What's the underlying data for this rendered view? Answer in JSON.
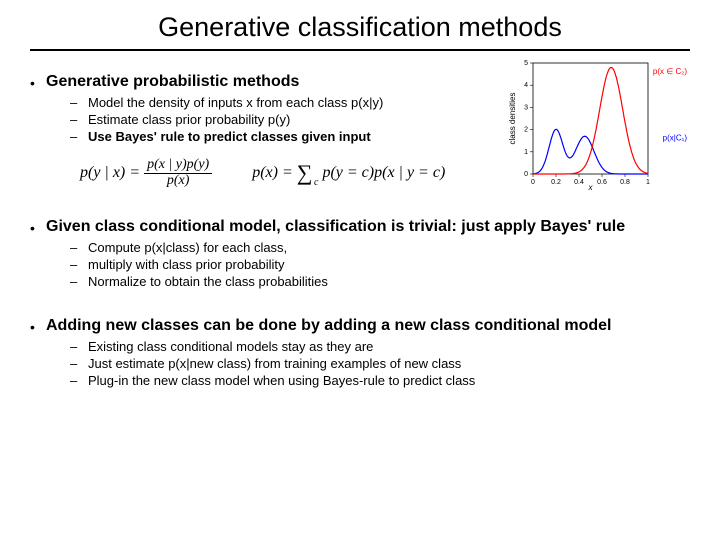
{
  "title": "Generative classification methods",
  "section1": {
    "heading": "Generative probabilistic methods",
    "items": [
      {
        "text": "Model the density of inputs x from each class p(x|y)",
        "bold": false
      },
      {
        "text": "Estimate class prior probability p(y)",
        "bold": false
      },
      {
        "text": "Use Bayes' rule to predict classes given input",
        "bold": true
      }
    ]
  },
  "formulas": {
    "f1_lhs": "p(y | x) =",
    "f1_num": "p(x | y)p(y)",
    "f1_den": "p(x)",
    "f2_lhs": "p(x) =",
    "f2_rhs": "p(y = c)p(x | y = c)"
  },
  "section2": {
    "heading": "Given class conditional model, classification is trivial: just apply Bayes' rule",
    "items": [
      {
        "text": "Compute p(x|class) for each class,"
      },
      {
        "text": "multiply with class prior probability"
      },
      {
        "text": "Normalize to obtain the class probabilities"
      }
    ]
  },
  "section3": {
    "heading": "Adding new classes can be done by adding a new class conditional model",
    "items": [
      {
        "text": "Existing class conditional models stay as they are"
      },
      {
        "text": "Just estimate p(x|new class) from training examples of new class"
      },
      {
        "text": "Plug-in the new class model when using Bayes-rule to predict class"
      }
    ]
  },
  "chart": {
    "xlim": [
      0,
      1
    ],
    "ylim": [
      0,
      5
    ],
    "xticks": [
      0,
      0.2,
      0.4,
      0.6,
      0.8,
      1
    ],
    "yticks": [
      0,
      1,
      2,
      3,
      4,
      5
    ],
    "xlabel": "x",
    "ylabel": "class densities",
    "blue": {
      "color": "#0000ff",
      "modes": [
        {
          "mu": 0.2,
          "sigma": 0.06,
          "amp": 2.0
        },
        {
          "mu": 0.45,
          "sigma": 0.08,
          "amp": 1.7
        }
      ]
    },
    "red": {
      "color": "#ff0000",
      "mu": 0.68,
      "sigma": 0.1,
      "amp": 4.8
    },
    "label_blue": "p(x|C₁)",
    "label_red": "p(x ∈ C₂)",
    "tick_fontsize": 7,
    "label_fontsize": 8
  }
}
